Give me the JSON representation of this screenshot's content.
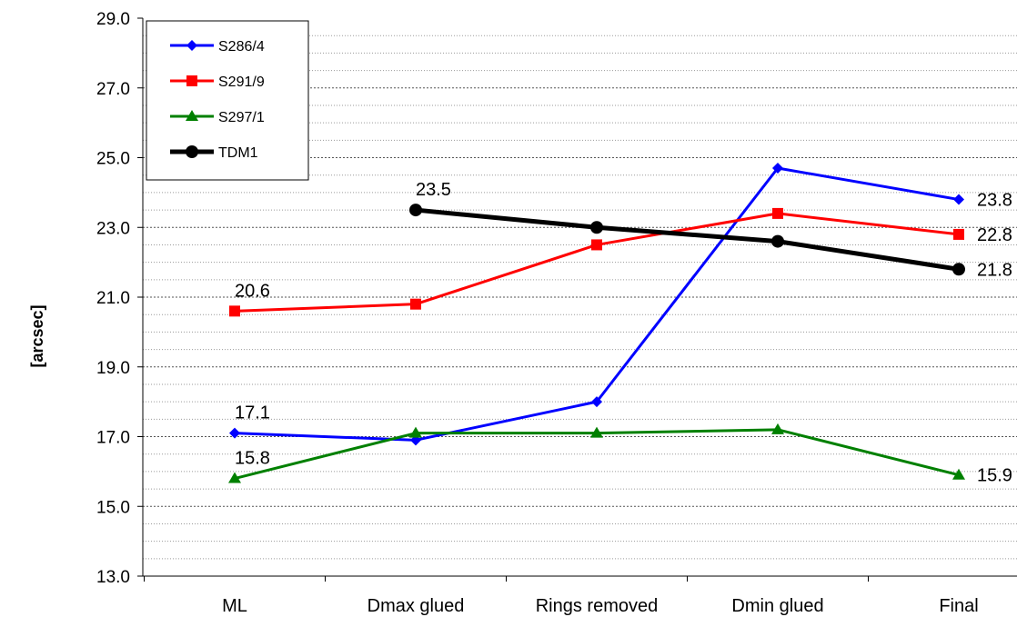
{
  "chart_data": {
    "type": "line",
    "title": "",
    "xlabel": "",
    "ylabel": "[arcsec]",
    "ylim": [
      13.0,
      29.0
    ],
    "yticks": [
      "13.0",
      "15.0",
      "17.0",
      "19.0",
      "21.0",
      "23.0",
      "25.0",
      "27.0",
      "29.0"
    ],
    "categories": [
      "ML",
      "Dmax glued",
      "Rings removed",
      "Dmin glued",
      "Final"
    ],
    "grid": true,
    "legend_position": "top-left",
    "series": [
      {
        "name": "S286/4",
        "color": "#0000ff",
        "marker": "diamond",
        "values": [
          17.1,
          16.9,
          18.0,
          24.7,
          23.8
        ]
      },
      {
        "name": "S291/9",
        "color": "#ff0000",
        "marker": "square",
        "values": [
          20.6,
          20.8,
          22.5,
          23.4,
          22.8
        ]
      },
      {
        "name": "S297/1",
        "color": "#008000",
        "marker": "triangle",
        "values": [
          15.8,
          17.1,
          17.1,
          17.2,
          15.9
        ]
      },
      {
        "name": "TDM1",
        "color": "#000000",
        "marker": "circle",
        "values": [
          null,
          23.5,
          23.0,
          22.6,
          21.8
        ]
      }
    ],
    "data_labels": [
      {
        "series": "S286/4",
        "category": "ML",
        "text": "17.1"
      },
      {
        "series": "S286/4",
        "category": "Final",
        "text": "23.8"
      },
      {
        "series": "S291/9",
        "category": "ML",
        "text": "20.6"
      },
      {
        "series": "S291/9",
        "category": "Final",
        "text": "22.8"
      },
      {
        "series": "S297/1",
        "category": "ML",
        "text": "15.8"
      },
      {
        "series": "S297/1",
        "category": "Final",
        "text": "15.9"
      },
      {
        "series": "TDM1",
        "category": "Dmax glued",
        "text": "23.5"
      },
      {
        "series": "TDM1",
        "category": "Final",
        "text": "21.8"
      }
    ]
  }
}
